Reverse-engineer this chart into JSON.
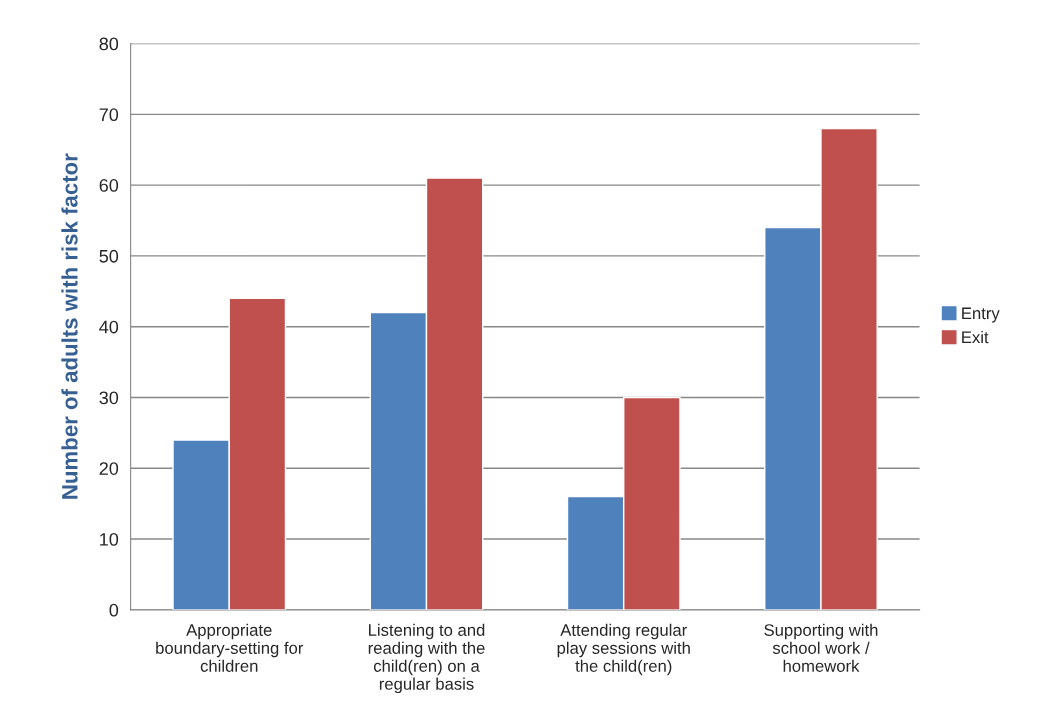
{
  "chart_data": {
    "type": "bar",
    "ylabel": "Number of adults with risk factor",
    "categories": [
      "Appropriate\nboundary-setting for\nchildren",
      "Listening to and\nreading with the\nchild(ren) on a\nregular basis",
      "Attending regular\nplay sessions with\nthe child(ren)",
      "Supporting with\nschool work /\nhomework"
    ],
    "series": [
      {
        "name": "Entry",
        "color": "#4f81bd",
        "values": [
          24,
          42,
          16,
          54
        ]
      },
      {
        "name": "Exit",
        "color": "#c0504d",
        "values": [
          44,
          61,
          30,
          68
        ]
      }
    ],
    "ylim": [
      0,
      80
    ],
    "yticks": [
      0,
      10,
      20,
      30,
      40,
      50,
      60,
      70,
      80
    ],
    "grid": "y",
    "legend": "right"
  }
}
